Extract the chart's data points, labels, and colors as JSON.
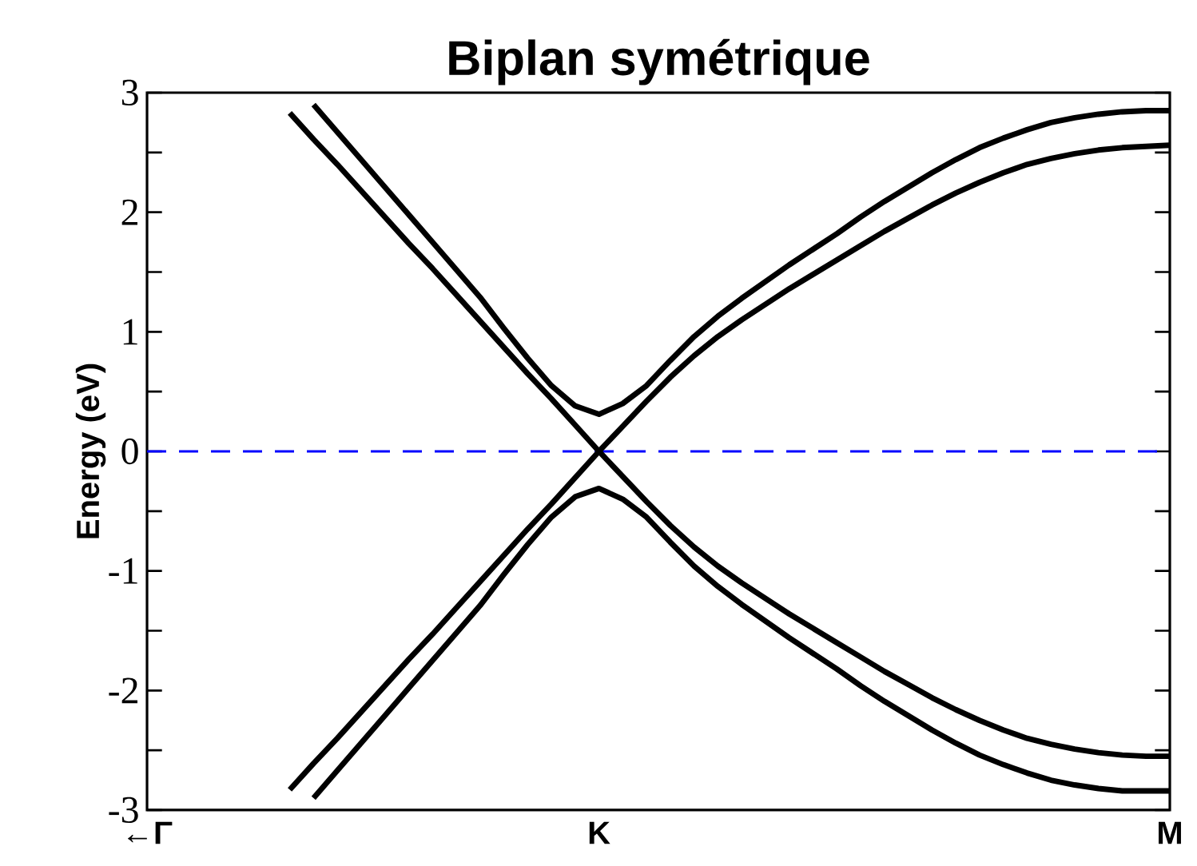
{
  "chart_data": {
    "type": "line",
    "title": "Biplan symétrique",
    "ylabel": "Energy (eV)",
    "categories": [
      "←Γ",
      null,
      null,
      null,
      null,
      null,
      null,
      null,
      null,
      null,
      null,
      null,
      null,
      null,
      null,
      null,
      null,
      null,
      null,
      "K",
      null,
      null,
      null,
      null,
      null,
      null,
      null,
      null,
      null,
      null,
      null,
      null,
      null,
      null,
      null,
      null,
      null,
      null,
      null,
      null,
      null,
      null,
      null,
      "M"
    ],
    "series": [
      {
        "color": "#000000",
        "values": [
          null,
          null,
          null,
          null,
          null,
          null,
          null,
          2.9,
          2.67,
          2.44,
          2.21,
          1.98,
          1.75,
          1.52,
          1.29,
          1.03,
          0.78,
          0.55,
          0.38,
          0.31,
          0.4,
          0.55,
          0.76,
          0.96,
          1.13,
          1.28,
          1.42,
          1.56,
          1.69,
          1.82,
          1.96,
          2.09,
          2.21,
          2.33,
          2.44,
          2.54,
          2.62,
          2.69,
          2.75,
          2.79,
          2.82,
          2.84,
          2.85,
          2.85
        ]
      },
      {
        "color": "#000000",
        "values": [
          null,
          null,
          null,
          null,
          null,
          null,
          2.83,
          2.61,
          2.4,
          2.18,
          1.96,
          1.74,
          1.53,
          1.31,
          1.09,
          0.87,
          0.65,
          0.44,
          0.22,
          0,
          0.21,
          0.42,
          0.62,
          0.8,
          0.96,
          1.1,
          1.23,
          1.36,
          1.48,
          1.6,
          1.72,
          1.84,
          1.95,
          2.06,
          2.16,
          2.25,
          2.33,
          2.4,
          2.45,
          2.49,
          2.52,
          2.54,
          2.55,
          2.56
        ]
      },
      {
        "color": "#000000",
        "values": [
          null,
          null,
          null,
          null,
          null,
          null,
          -2.83,
          -2.61,
          -2.4,
          -2.18,
          -1.96,
          -1.74,
          -1.53,
          -1.31,
          -1.09,
          -0.87,
          -0.65,
          -0.44,
          -0.22,
          0,
          -0.21,
          -0.42,
          -0.62,
          -0.8,
          -0.96,
          -1.1,
          -1.23,
          -1.36,
          -1.48,
          -1.6,
          -1.72,
          -1.84,
          -1.95,
          -2.06,
          -2.16,
          -2.25,
          -2.33,
          -2.4,
          -2.45,
          -2.49,
          -2.52,
          -2.54,
          -2.55,
          -2.55
        ]
      },
      {
        "color": "#000000",
        "values": [
          null,
          null,
          null,
          null,
          null,
          null,
          null,
          -2.9,
          -2.67,
          -2.44,
          -2.21,
          -1.98,
          -1.75,
          -1.52,
          -1.29,
          -1.03,
          -0.78,
          -0.55,
          -0.38,
          -0.31,
          -0.4,
          -0.55,
          -0.76,
          -0.96,
          -1.13,
          -1.28,
          -1.42,
          -1.56,
          -1.69,
          -1.82,
          -1.96,
          -2.09,
          -2.21,
          -2.33,
          -2.44,
          -2.54,
          -2.62,
          -2.69,
          -2.75,
          -2.79,
          -2.82,
          -2.84,
          -2.84,
          -2.84
        ]
      }
    ],
    "ylim": [
      -3,
      3
    ],
    "yticks": [
      -3,
      {
        "value": -2.5,
        "label": null
      },
      -2,
      {
        "value": -1.5,
        "label": null
      },
      -1,
      {
        "value": -0.5,
        "label": null
      },
      0,
      {
        "value": 0.5,
        "label": null
      },
      1,
      {
        "value": 1.5,
        "label": null
      },
      2,
      {
        "value": 2.5,
        "label": null
      },
      3
    ],
    "ref_lines": [
      {
        "axis": "y",
        "value": 0,
        "color": "#0000ff",
        "line_style": "dashed"
      }
    ],
    "grid": false,
    "marker": "none",
    "line_style": "solid"
  }
}
